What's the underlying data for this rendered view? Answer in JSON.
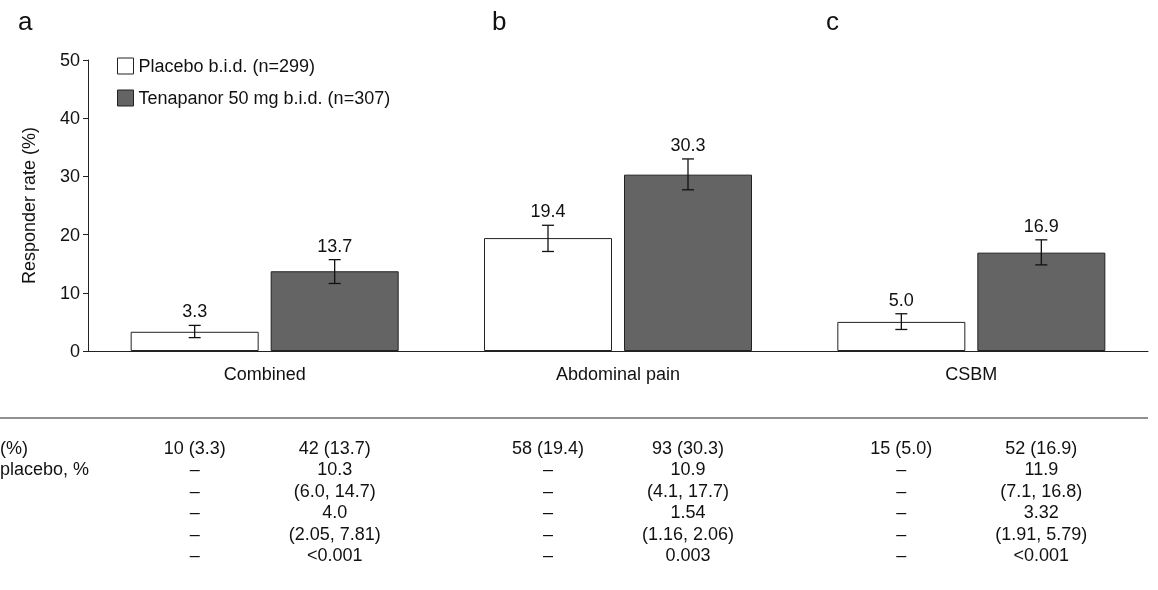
{
  "chart_data": {
    "type": "bar",
    "ylabel": "Responder rate (%)",
    "categories": [
      "Combined",
      "Abdominal pain",
      "CSBM"
    ],
    "series": [
      {
        "name": "Placebo b.i.d. (n=299)",
        "color": "#ffffff",
        "values": [
          3.3,
          19.4,
          5.0
        ],
        "value_labels": [
          "3.3",
          "19.4",
          "5.0"
        ],
        "errors": [
          [
            2.3,
            4.4
          ],
          [
            17.1,
            21.6
          ],
          [
            3.7,
            6.4
          ]
        ]
      },
      {
        "name": "Tenapanor 50 mg b.i.d. (n=307)",
        "color": "#646464",
        "values": [
          13.7,
          30.3,
          16.9
        ],
        "value_labels": [
          "13.7",
          "30.3",
          "16.9"
        ],
        "errors": [
          [
            11.6,
            15.7
          ],
          [
            27.7,
            33.0
          ],
          [
            14.8,
            19.1
          ]
        ]
      }
    ],
    "ylim": [
      0,
      50
    ],
    "yticks": [
      0,
      10,
      20,
      30,
      40,
      50
    ],
    "grid": false,
    "legend": "top left",
    "annotations": [
      "a",
      "b",
      "c",
      "(%)",
      "placebo, %",
      "10 (3.3)",
      "42 (13.7)",
      "58 (19.4)",
      "93 (30.3)",
      "15 (5.0)",
      "52 (16.9)",
      "–",
      "10.3",
      "–",
      "10.9",
      "–",
      "11.9",
      "–",
      "(6.0, 14.7)",
      "–",
      "(4.1, 17.7)",
      "–",
      "(7.1, 16.8)",
      "–",
      "4.0",
      "–",
      "1.54",
      "–",
      "3.32",
      "–",
      "(2.05, 7.81)",
      "–",
      "(1.16, 2.06)",
      "–",
      "(1.91, 5.79)",
      "–",
      "<0.001",
      "–",
      "0.003",
      "–",
      "<0.001"
    ]
  }
}
